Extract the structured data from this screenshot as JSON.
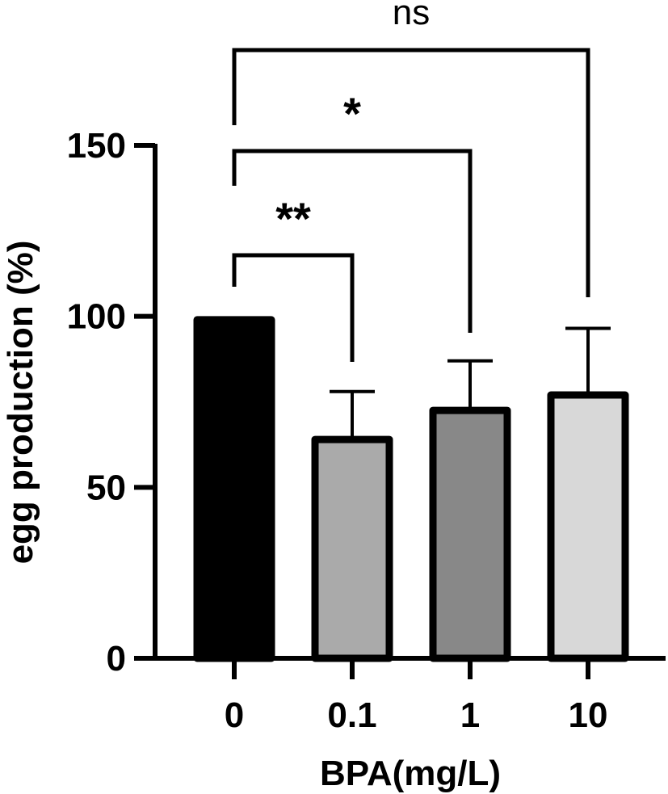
{
  "chart_data": {
    "type": "bar",
    "categories": [
      "0",
      "0.1",
      "1",
      "10"
    ],
    "values": [
      99,
      64,
      72.5,
      77
    ],
    "errors": [
      0,
      14,
      14.5,
      19.5
    ],
    "colors": [
      "#000000",
      "#aaaaaa",
      "#888888",
      "#d8d8d8"
    ],
    "xlabel": "BPA(mg/L)",
    "ylabel": "egg production (%)",
    "ylim": [
      0,
      150
    ],
    "yticks": [
      0,
      50,
      100,
      150
    ],
    "grid": false,
    "significance": [
      {
        "from": "0",
        "to": "0.1",
        "label": "**"
      },
      {
        "from": "0",
        "to": "1",
        "label": "*"
      },
      {
        "from": "0",
        "to": "10",
        "label": "ns"
      }
    ]
  }
}
